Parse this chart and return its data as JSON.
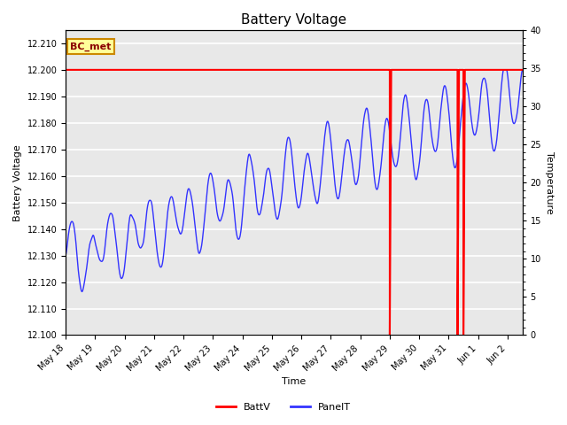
{
  "title": "Battery Voltage",
  "xlabel": "Time",
  "ylabel_left": "Battery Voltage",
  "ylabel_right": "Temperature",
  "ylim_left": [
    12.1,
    12.215
  ],
  "ylim_right": [
    0,
    40
  ],
  "yticks_left": [
    12.1,
    12.11,
    12.12,
    12.13,
    12.14,
    12.15,
    12.16,
    12.17,
    12.18,
    12.19,
    12.2,
    12.21
  ],
  "yticks_right": [
    0,
    5,
    10,
    15,
    20,
    25,
    30,
    35,
    40
  ],
  "xtick_labels": [
    "May 18",
    "May 19",
    "May 20",
    "May 21",
    "May 22",
    "May 23",
    "May 24",
    "May 25",
    "May 26",
    "May 27",
    "May 28",
    "May 29",
    "May 30",
    "May 31",
    "Jun 1",
    "Jun 2"
  ],
  "battv_color": "#FF0000",
  "panel_color": "#3333FF",
  "bg_color": "#E8E8E8",
  "grid_color": "#FFFFFF",
  "annotation_label": "BC_met",
  "title_fontsize": 11,
  "axis_fontsize": 8,
  "tick_fontsize": 7,
  "figsize": [
    6.4,
    4.8
  ],
  "dpi": 100
}
